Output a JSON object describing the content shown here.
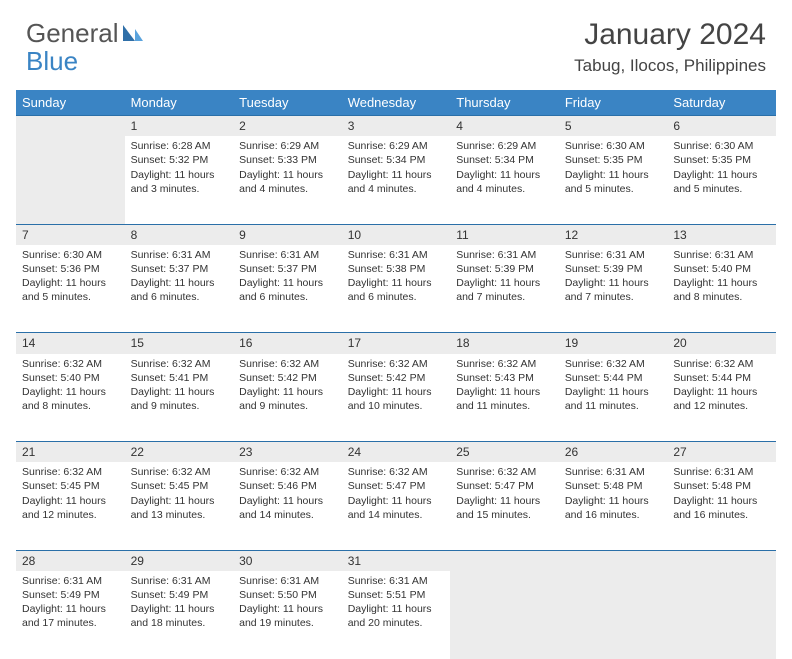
{
  "brand": {
    "part1": "General",
    "part2": "Blue"
  },
  "title": "January 2024",
  "location": "Tabug, Ilocos, Philippines",
  "colors": {
    "header_bg": "#3a84c4",
    "border": "#2a6fa8",
    "shade": "#ececec",
    "text": "#333333",
    "brand_accent": "#3a84c4"
  },
  "weekdays": [
    "Sunday",
    "Monday",
    "Tuesday",
    "Wednesday",
    "Thursday",
    "Friday",
    "Saturday"
  ],
  "weeks": [
    [
      null,
      {
        "n": "1",
        "sunrise": "6:28 AM",
        "sunset": "5:32 PM",
        "daylight": "11 hours and 3 minutes."
      },
      {
        "n": "2",
        "sunrise": "6:29 AM",
        "sunset": "5:33 PM",
        "daylight": "11 hours and 4 minutes."
      },
      {
        "n": "3",
        "sunrise": "6:29 AM",
        "sunset": "5:34 PM",
        "daylight": "11 hours and 4 minutes."
      },
      {
        "n": "4",
        "sunrise": "6:29 AM",
        "sunset": "5:34 PM",
        "daylight": "11 hours and 4 minutes."
      },
      {
        "n": "5",
        "sunrise": "6:30 AM",
        "sunset": "5:35 PM",
        "daylight": "11 hours and 5 minutes."
      },
      {
        "n": "6",
        "sunrise": "6:30 AM",
        "sunset": "5:35 PM",
        "daylight": "11 hours and 5 minutes."
      }
    ],
    [
      {
        "n": "7",
        "sunrise": "6:30 AM",
        "sunset": "5:36 PM",
        "daylight": "11 hours and 5 minutes."
      },
      {
        "n": "8",
        "sunrise": "6:31 AM",
        "sunset": "5:37 PM",
        "daylight": "11 hours and 6 minutes."
      },
      {
        "n": "9",
        "sunrise": "6:31 AM",
        "sunset": "5:37 PM",
        "daylight": "11 hours and 6 minutes."
      },
      {
        "n": "10",
        "sunrise": "6:31 AM",
        "sunset": "5:38 PM",
        "daylight": "11 hours and 6 minutes."
      },
      {
        "n": "11",
        "sunrise": "6:31 AM",
        "sunset": "5:39 PM",
        "daylight": "11 hours and 7 minutes."
      },
      {
        "n": "12",
        "sunrise": "6:31 AM",
        "sunset": "5:39 PM",
        "daylight": "11 hours and 7 minutes."
      },
      {
        "n": "13",
        "sunrise": "6:31 AM",
        "sunset": "5:40 PM",
        "daylight": "11 hours and 8 minutes."
      }
    ],
    [
      {
        "n": "14",
        "sunrise": "6:32 AM",
        "sunset": "5:40 PM",
        "daylight": "11 hours and 8 minutes."
      },
      {
        "n": "15",
        "sunrise": "6:32 AM",
        "sunset": "5:41 PM",
        "daylight": "11 hours and 9 minutes."
      },
      {
        "n": "16",
        "sunrise": "6:32 AM",
        "sunset": "5:42 PM",
        "daylight": "11 hours and 9 minutes."
      },
      {
        "n": "17",
        "sunrise": "6:32 AM",
        "sunset": "5:42 PM",
        "daylight": "11 hours and 10 minutes."
      },
      {
        "n": "18",
        "sunrise": "6:32 AM",
        "sunset": "5:43 PM",
        "daylight": "11 hours and 11 minutes."
      },
      {
        "n": "19",
        "sunrise": "6:32 AM",
        "sunset": "5:44 PM",
        "daylight": "11 hours and 11 minutes."
      },
      {
        "n": "20",
        "sunrise": "6:32 AM",
        "sunset": "5:44 PM",
        "daylight": "11 hours and 12 minutes."
      }
    ],
    [
      {
        "n": "21",
        "sunrise": "6:32 AM",
        "sunset": "5:45 PM",
        "daylight": "11 hours and 12 minutes."
      },
      {
        "n": "22",
        "sunrise": "6:32 AM",
        "sunset": "5:45 PM",
        "daylight": "11 hours and 13 minutes."
      },
      {
        "n": "23",
        "sunrise": "6:32 AM",
        "sunset": "5:46 PM",
        "daylight": "11 hours and 14 minutes."
      },
      {
        "n": "24",
        "sunrise": "6:32 AM",
        "sunset": "5:47 PM",
        "daylight": "11 hours and 14 minutes."
      },
      {
        "n": "25",
        "sunrise": "6:32 AM",
        "sunset": "5:47 PM",
        "daylight": "11 hours and 15 minutes."
      },
      {
        "n": "26",
        "sunrise": "6:31 AM",
        "sunset": "5:48 PM",
        "daylight": "11 hours and 16 minutes."
      },
      {
        "n": "27",
        "sunrise": "6:31 AM",
        "sunset": "5:48 PM",
        "daylight": "11 hours and 16 minutes."
      }
    ],
    [
      {
        "n": "28",
        "sunrise": "6:31 AM",
        "sunset": "5:49 PM",
        "daylight": "11 hours and 17 minutes."
      },
      {
        "n": "29",
        "sunrise": "6:31 AM",
        "sunset": "5:49 PM",
        "daylight": "11 hours and 18 minutes."
      },
      {
        "n": "30",
        "sunrise": "6:31 AM",
        "sunset": "5:50 PM",
        "daylight": "11 hours and 19 minutes."
      },
      {
        "n": "31",
        "sunrise": "6:31 AM",
        "sunset": "5:51 PM",
        "daylight": "11 hours and 20 minutes."
      },
      null,
      null,
      null
    ]
  ],
  "labels": {
    "sunrise": "Sunrise:",
    "sunset": "Sunset:",
    "daylight": "Daylight:"
  }
}
